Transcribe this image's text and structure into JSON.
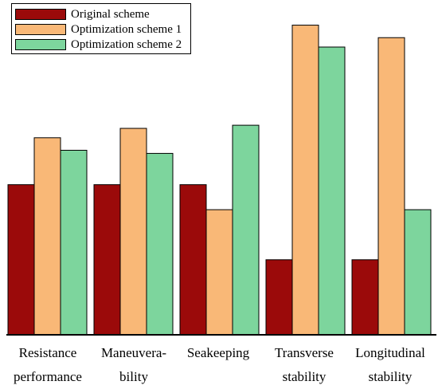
{
  "chart_data": {
    "type": "bar",
    "categories": [
      [
        "Resistance",
        "performance"
      ],
      [
        "Maneuvera-",
        "bility"
      ],
      [
        "Seakeeping",
        ""
      ],
      [
        "Transverse",
        "stability"
      ],
      [
        "Longitudinal",
        "stability"
      ]
    ],
    "series": [
      {
        "name": "Original scheme",
        "color": "#9b0a0a",
        "values": [
          0.48,
          0.48,
          0.48,
          0.24,
          0.24
        ]
      },
      {
        "name": "Optimization scheme 1",
        "color": "#f9b877",
        "values": [
          0.63,
          0.66,
          0.4,
          0.99,
          0.95
        ]
      },
      {
        "name": "Optimization scheme 2",
        "color": "#7dd59d",
        "values": [
          0.59,
          0.58,
          0.67,
          0.92,
          0.4
        ]
      }
    ],
    "ylim": [
      0,
      1.05
    ],
    "title": "",
    "xlabel": "",
    "ylabel": "",
    "legend": "top-left",
    "grid": false
  }
}
